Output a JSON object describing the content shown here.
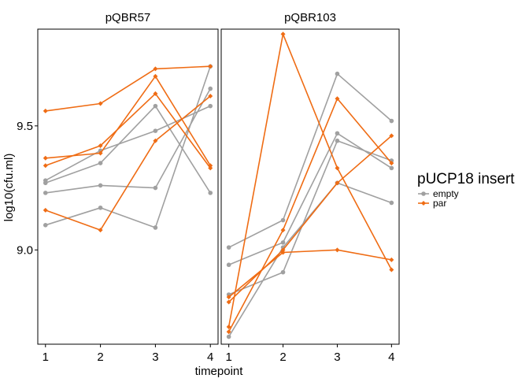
{
  "chart_data": {
    "type": "line",
    "title": "",
    "xlabel": "timepoint",
    "ylabel": "log10(cfu.ml)",
    "x": [
      1,
      2,
      3,
      4
    ],
    "xlim": [
      0.86,
      4.14
    ],
    "ylim": [
      8.62,
      9.89
    ],
    "yticks": [
      9.0,
      9.5
    ],
    "ytick_labels": [
      "9.0",
      "9.5"
    ],
    "xtick_labels": [
      "1",
      "2",
      "3",
      "4"
    ],
    "grid": false,
    "colors": {
      "empty": "#a0a0a0",
      "par": "#ef6c14"
    },
    "legend": {
      "title": "pUCP18 insert",
      "position": "right",
      "entries": [
        {
          "key": "empty",
          "label": "empty"
        },
        {
          "key": "par",
          "label": "par"
        }
      ]
    },
    "panels": [
      {
        "label": "pQBR57",
        "series": [
          {
            "group": "empty",
            "values": [
              9.28,
              9.4,
              9.48,
              9.58
            ]
          },
          {
            "group": "empty",
            "values": [
              9.27,
              9.35,
              9.58,
              9.23
            ]
          },
          {
            "group": "empty",
            "values": [
              9.23,
              9.26,
              9.25,
              9.65
            ]
          },
          {
            "group": "empty",
            "values": [
              9.1,
              9.17,
              9.09,
              9.74
            ]
          },
          {
            "group": "par",
            "values": [
              9.56,
              9.59,
              9.73,
              9.74
            ]
          },
          {
            "group": "par",
            "values": [
              9.37,
              9.39,
              9.7,
              9.34
            ]
          },
          {
            "group": "par",
            "values": [
              9.34,
              9.42,
              9.63,
              9.33
            ]
          },
          {
            "group": "par",
            "values": [
              9.16,
              9.08,
              9.44,
              9.62
            ]
          }
        ]
      },
      {
        "label": "pQBR103",
        "series": [
          {
            "group": "empty",
            "values": [
              9.01,
              9.12,
              9.71,
              9.52
            ]
          },
          {
            "group": "empty",
            "values": [
              8.94,
              9.03,
              9.47,
              9.33
            ]
          },
          {
            "group": "empty",
            "values": [
              8.82,
              8.91,
              9.44,
              9.36
            ]
          },
          {
            "group": "empty",
            "values": [
              8.65,
              9.01,
              9.27,
              9.19
            ]
          },
          {
            "group": "par",
            "values": [
              8.69,
              9.87,
              9.33,
              8.92
            ]
          },
          {
            "group": "par",
            "values": [
              8.67,
              9.08,
              9.61,
              9.35
            ]
          },
          {
            "group": "par",
            "values": [
              8.79,
              9.0,
              9.27,
              9.46
            ]
          },
          {
            "group": "par",
            "values": [
              8.81,
              8.99,
              9.0,
              8.96
            ]
          }
        ]
      }
    ]
  }
}
